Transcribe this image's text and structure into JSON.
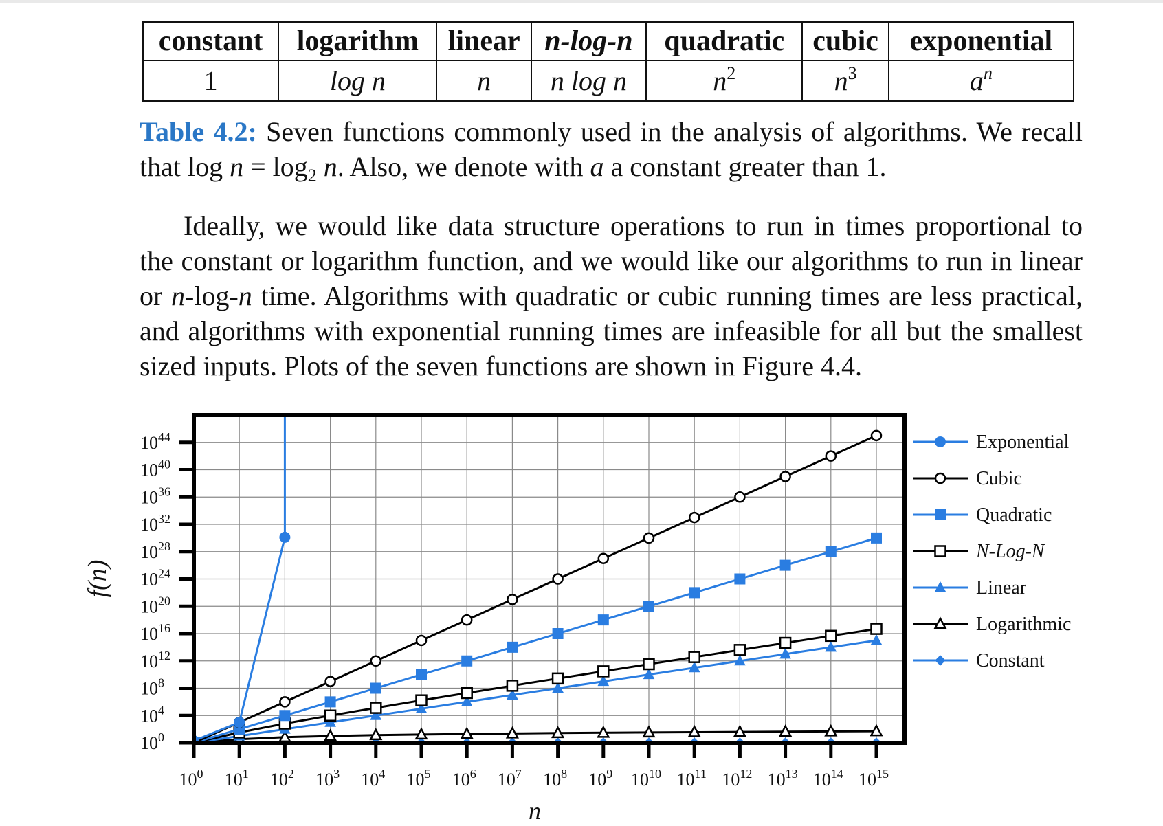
{
  "table": {
    "headers": [
      "constant",
      "logarithm",
      "linear",
      "n-log-n",
      "quadratic",
      "cubic",
      "exponential"
    ],
    "row": {
      "constant": "1",
      "logarithm": "log n",
      "linear": "n",
      "nlogn": "n log n",
      "quadratic_base": "n",
      "quadratic_exp": "2",
      "cubic_base": "n",
      "cubic_exp": "3",
      "exponential_base": "a",
      "exponential_exp": "n"
    }
  },
  "caption": {
    "label": "Table 4.2:",
    "text_part1": " Seven functions commonly used in the analysis of algorithms. We recall that log ",
    "n1": "n",
    "eq": " = log",
    "sub": "2",
    "n2": " n",
    "text_part2": ". Also, we denote with ",
    "a": "a",
    "text_part3": " a constant greater than 1."
  },
  "paragraph": {
    "text_part1": "Ideally, we would like data structure operations to run in times proportional to the constant or logarithm function, and we would like our algorithms to run in linear or ",
    "n1": "n",
    "mid": "-log-",
    "n2": "n",
    "text_part2": " time. Algorithms with quadratic or cubic running times are less practical, and algorithms with exponential running times are infeasible for all but the smallest sized inputs. Plots of the seven functions are shown in Figure 4.4."
  },
  "chart_data": {
    "type": "line",
    "x_scale": "log10",
    "y_scale": "log10",
    "xlabel": "n",
    "ylabel": "f(n)",
    "xlim": [
      1,
      1000000000000000.0
    ],
    "ylim": [
      1,
      1e+48
    ],
    "grid": true,
    "legend_placement": "right",
    "x_ticks": [
      "10^0",
      "10^1",
      "10^2",
      "10^3",
      "10^4",
      "10^5",
      "10^6",
      "10^7",
      "10^8",
      "10^9",
      "10^10",
      "10^11",
      "10^12",
      "10^13",
      "10^14",
      "10^15"
    ],
    "y_ticks": [
      "10^0",
      "10^4",
      "10^8",
      "10^12",
      "10^16",
      "10^20",
      "10^24",
      "10^28",
      "10^32",
      "10^36",
      "10^40",
      "10^44"
    ],
    "x": [
      1,
      10,
      100,
      1000.0,
      10000.0,
      100000.0,
      1000000.0,
      10000000.0,
      100000000.0,
      1000000000.0,
      10000000000.0,
      100000000000.0,
      1000000000000.0,
      10000000000000.0,
      100000000000000.0,
      1000000000000000.0
    ],
    "series": [
      {
        "name": "Exponential",
        "color": "#2a7de1",
        "marker": "circle-filled",
        "x": [
          1,
          10,
          100
        ],
        "values": [
          2,
          1024,
          1.27e+30
        ]
      },
      {
        "name": "Cubic",
        "color": "#000000",
        "marker": "circle-open",
        "values": [
          1,
          1000.0,
          1000000.0,
          1000000000.0,
          1000000000000.0,
          1000000000000000.0,
          1e+18,
          1e+21,
          1e+24,
          1e+27,
          1e+30,
          1e+33,
          1e+36,
          1e+39,
          1e+42,
          1e+45
        ]
      },
      {
        "name": "Quadratic",
        "color": "#2a7de1",
        "marker": "square-filled",
        "values": [
          1,
          100.0,
          10000.0,
          1000000.0,
          100000000.0,
          10000000000.0,
          1000000000000.0,
          100000000000000.0,
          1e+16,
          1e+18,
          1e+20,
          1e+22,
          1e+24,
          1e+26,
          1e+28,
          1e+30
        ]
      },
      {
        "name": "N-Log-N",
        "color": "#000000",
        "marker": "square-open",
        "values": [
          0,
          33.2,
          664,
          9966,
          133000.0,
          1660000.0,
          19900000.0,
          233000000.0,
          2660000000.0,
          29900000000.0,
          332000000000.0,
          3650000000000.0,
          39900000000000.0,
          432000000000000.0,
          4650000000000000.0,
          4.98e+16
        ]
      },
      {
        "name": "Linear",
        "color": "#2a7de1",
        "marker": "triangle-filled",
        "values": [
          1,
          10.0,
          100.0,
          1000.0,
          10000.0,
          100000.0,
          1000000.0,
          10000000.0,
          100000000.0,
          1000000000.0,
          10000000000.0,
          100000000000.0,
          1000000000000.0,
          10000000000000.0,
          100000000000000.0,
          1000000000000000.0
        ]
      },
      {
        "name": "Logarithmic",
        "color": "#000000",
        "marker": "triangle-open",
        "values": [
          0,
          3.32,
          6.64,
          9.97,
          13.3,
          16.6,
          19.9,
          23.3,
          26.6,
          29.9,
          33.2,
          36.5,
          39.9,
          43.2,
          46.5,
          49.8
        ]
      },
      {
        "name": "Constant",
        "color": "#2a7de1",
        "marker": "diamond-filled",
        "values": [
          1,
          1,
          1,
          1,
          1,
          1,
          1,
          1,
          1,
          1,
          1,
          1,
          1,
          1,
          1,
          1
        ]
      }
    ]
  }
}
